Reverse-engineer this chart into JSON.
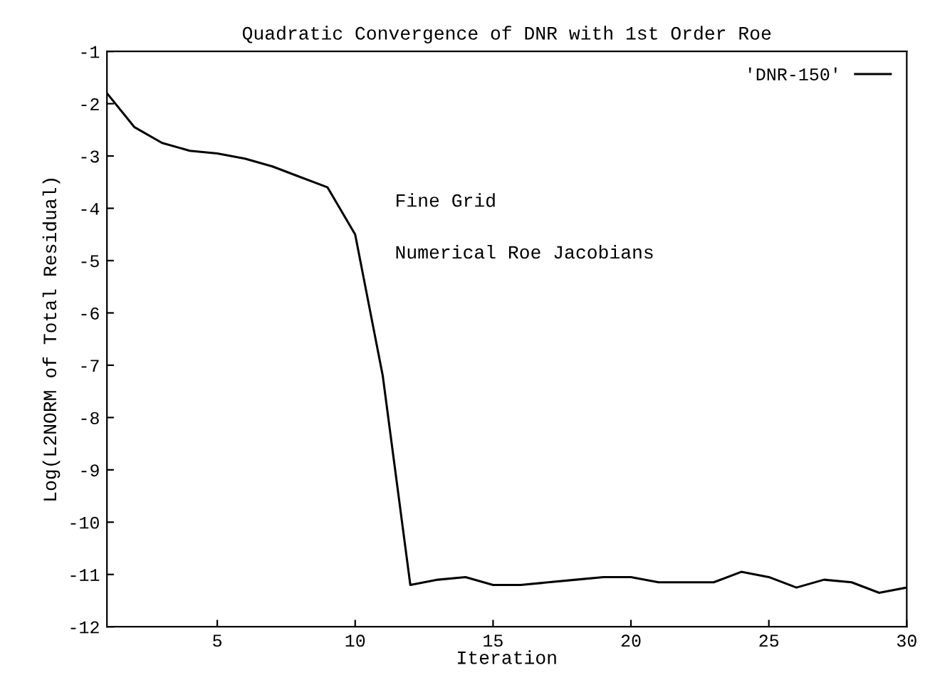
{
  "chart_data": {
    "type": "line",
    "title": "Quadratic Convergence of DNR with 1st Order Roe",
    "xlabel": "Iteration",
    "ylabel": "Log(L2NORM of Total Residual)",
    "x": [
      1,
      2,
      3,
      4,
      5,
      6,
      7,
      8,
      9,
      10,
      11,
      12,
      13,
      14,
      15,
      16,
      17,
      18,
      19,
      20,
      21,
      22,
      23,
      24,
      25,
      26,
      27,
      28,
      29,
      30
    ],
    "series": [
      {
        "name": "'DNR-150'",
        "color": "#000000",
        "values": [
          -1.8,
          -2.45,
          -2.75,
          -2.9,
          -2.95,
          -3.05,
          -3.2,
          -3.4,
          -3.6,
          -4.5,
          -7.2,
          -11.2,
          -11.1,
          -11.05,
          -11.2,
          -11.2,
          -11.15,
          -11.1,
          -11.05,
          -11.05,
          -11.15,
          -11.15,
          -11.15,
          -10.95,
          -11.05,
          -11.25,
          -11.1,
          -11.15,
          -11.35,
          -11.25
        ]
      }
    ],
    "xlim": [
      1,
      30
    ],
    "xticks": [
      5,
      10,
      15,
      20,
      25,
      30
    ],
    "ylim": [
      -12,
      -1
    ],
    "yticks": [
      -12,
      -11,
      -10,
      -9,
      -8,
      -7,
      -6,
      -5,
      -4,
      -3,
      -2,
      -1
    ],
    "annotations": [
      "Fine Grid",
      "Numerical Roe Jacobians"
    ],
    "legend": "top right",
    "grid": false,
    "line_style": "solid",
    "marker": "none"
  }
}
